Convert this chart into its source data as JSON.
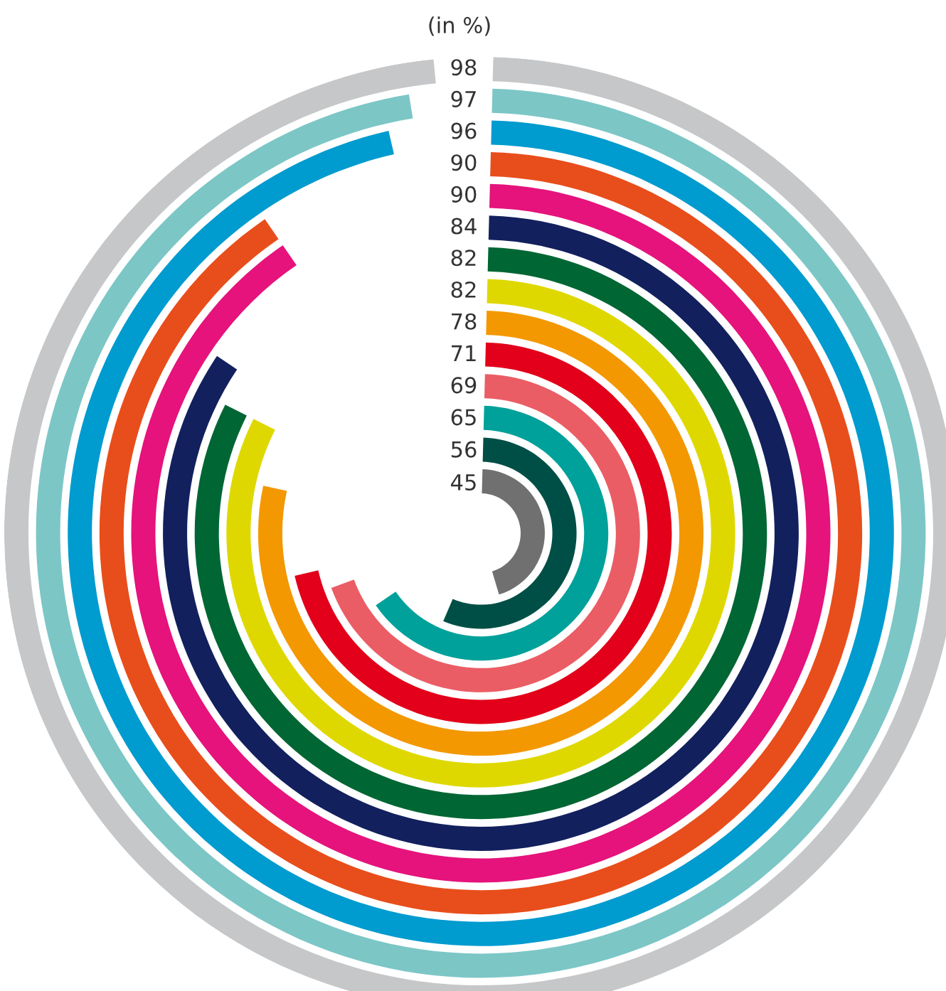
{
  "chart_data": {
    "type": "other",
    "title": "(in %)",
    "categories": [
      null,
      null,
      null,
      null,
      null,
      null,
      null,
      null,
      null,
      null,
      null,
      null,
      null,
      null
    ],
    "values": [
      98,
      97,
      96,
      90,
      90,
      84,
      82,
      82,
      78,
      71,
      69,
      65,
      56,
      45
    ],
    "colors": [
      "#c6c7c8",
      "#7cc6c6",
      "#009bcf",
      "#e84e1b",
      "#e5137b",
      "#13205e",
      "#006633",
      "#dfd800",
      "#f39800",
      "#e2001a",
      "#ea5d65",
      "#00a19a",
      "#004f46",
      "#707070"
    ],
    "data_labels": true
  }
}
